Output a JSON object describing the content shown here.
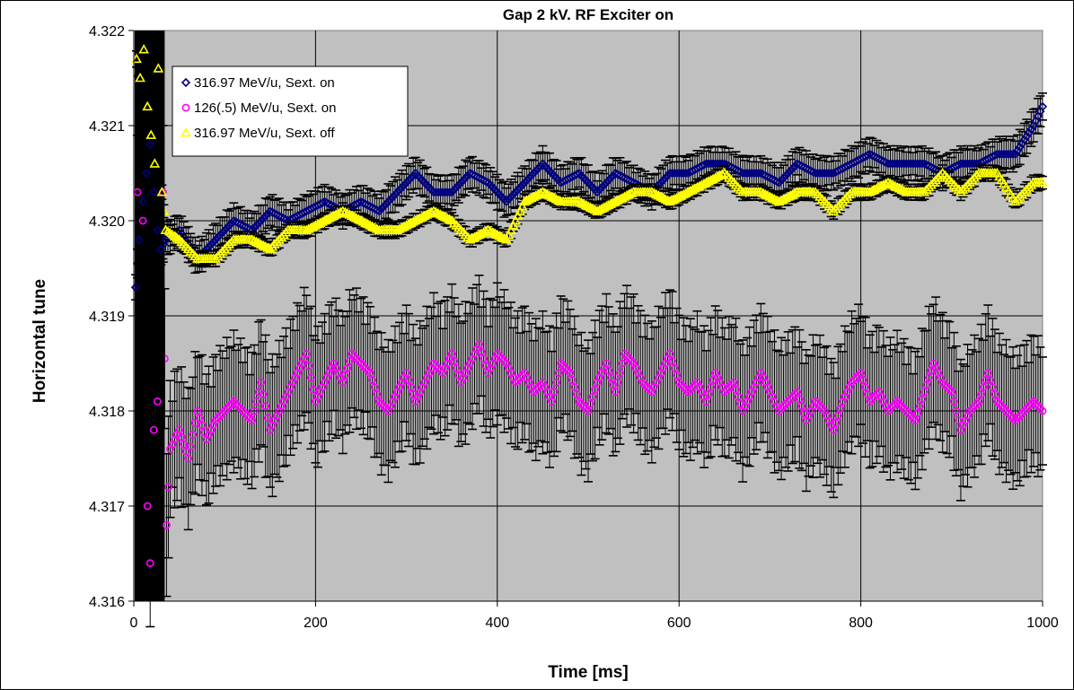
{
  "chart_data": {
    "type": "scatter",
    "title": "Gap 2 kV.  RF Exciter on",
    "xlabel": "Time [ms]",
    "ylabel": "Horizontal tune",
    "xlim": [
      0,
      1000
    ],
    "ylim": [
      4.316,
      4.322
    ],
    "xticks": [
      "0",
      "200",
      "400",
      "600",
      "800",
      "1000"
    ],
    "yticks": [
      "4.316",
      "4.317",
      "4.318",
      "4.319",
      "4.320",
      "4.321",
      "4.322"
    ],
    "grid": true,
    "legend_position": "top-left",
    "plot_background": "#c0c0c0",
    "series": [
      {
        "name": "316.97 MeV/u, Sext. on",
        "marker": "diamond",
        "color": "#000080",
        "error_bar": 0.00015,
        "points": [
          [
            2,
            4.3193
          ],
          [
            6,
            4.3198
          ],
          [
            10,
            4.3202
          ],
          [
            14,
            4.3205
          ],
          [
            18,
            4.3208
          ],
          [
            22,
            4.3203
          ],
          [
            26,
            4.3199
          ],
          [
            30,
            4.3197
          ],
          [
            35,
            4.3198
          ],
          [
            50,
            4.3199
          ],
          [
            70,
            4.3196
          ],
          [
            90,
            4.3198
          ],
          [
            110,
            4.32
          ],
          [
            130,
            4.3199
          ],
          [
            150,
            4.3201
          ],
          [
            170,
            4.32
          ],
          [
            190,
            4.3201
          ],
          [
            210,
            4.3202
          ],
          [
            230,
            4.3201
          ],
          [
            250,
            4.3202
          ],
          [
            270,
            4.3201
          ],
          [
            290,
            4.3203
          ],
          [
            310,
            4.3205
          ],
          [
            330,
            4.3203
          ],
          [
            350,
            4.3203
          ],
          [
            370,
            4.3205
          ],
          [
            390,
            4.3204
          ],
          [
            410,
            4.3202
          ],
          [
            430,
            4.3204
          ],
          [
            450,
            4.3206
          ],
          [
            470,
            4.3204
          ],
          [
            490,
            4.3205
          ],
          [
            510,
            4.3203
          ],
          [
            530,
            4.3205
          ],
          [
            550,
            4.3204
          ],
          [
            570,
            4.3203
          ],
          [
            590,
            4.3205
          ],
          [
            610,
            4.3205
          ],
          [
            630,
            4.3206
          ],
          [
            650,
            4.3206
          ],
          [
            670,
            4.3205
          ],
          [
            690,
            4.3205
          ],
          [
            710,
            4.3204
          ],
          [
            730,
            4.3206
          ],
          [
            750,
            4.3205
          ],
          [
            770,
            4.3205
          ],
          [
            790,
            4.3206
          ],
          [
            810,
            4.3207
          ],
          [
            830,
            4.3206
          ],
          [
            850,
            4.3206
          ],
          [
            870,
            4.3206
          ],
          [
            890,
            4.3205
          ],
          [
            910,
            4.3206
          ],
          [
            930,
            4.3206
          ],
          [
            950,
            4.3207
          ],
          [
            970,
            4.3207
          ],
          [
            990,
            4.321
          ],
          [
            1000,
            4.3212
          ]
        ]
      },
      {
        "name": "126(.5) MeV/u, Sext. on",
        "marker": "circle",
        "color": "#ff00ff",
        "error_bar": 0.0006,
        "points": [
          [
            4,
            4.3203
          ],
          [
            10,
            4.32
          ],
          [
            15,
            4.317
          ],
          [
            18,
            4.3164
          ],
          [
            22,
            4.3178
          ],
          [
            26,
            4.3181
          ],
          [
            32,
            4.3203
          ],
          [
            36,
            4.3168
          ],
          [
            40,
            4.3176
          ],
          [
            50,
            4.3178
          ],
          [
            60,
            4.3175
          ],
          [
            70,
            4.318
          ],
          [
            80,
            4.3177
          ],
          [
            90,
            4.3179
          ],
          [
            100,
            4.318
          ],
          [
            110,
            4.3181
          ],
          [
            120,
            4.318
          ],
          [
            130,
            4.3179
          ],
          [
            140,
            4.3183
          ],
          [
            150,
            4.3178
          ],
          [
            160,
            4.318
          ],
          [
            170,
            4.3182
          ],
          [
            180,
            4.3184
          ],
          [
            190,
            4.3186
          ],
          [
            200,
            4.3181
          ],
          [
            210,
            4.3183
          ],
          [
            220,
            4.3185
          ],
          [
            230,
            4.3183
          ],
          [
            240,
            4.3186
          ],
          [
            250,
            4.3185
          ],
          [
            260,
            4.3184
          ],
          [
            270,
            4.3181
          ],
          [
            280,
            4.318
          ],
          [
            290,
            4.3182
          ],
          [
            300,
            4.3184
          ],
          [
            310,
            4.3181
          ],
          [
            320,
            4.3183
          ],
          [
            330,
            4.3185
          ],
          [
            340,
            4.3184
          ],
          [
            350,
            4.3186
          ],
          [
            360,
            4.3183
          ],
          [
            370,
            4.3185
          ],
          [
            380,
            4.3187
          ],
          [
            390,
            4.3184
          ],
          [
            400,
            4.3186
          ],
          [
            410,
            4.3185
          ],
          [
            420,
            4.3183
          ],
          [
            430,
            4.3184
          ],
          [
            440,
            4.3182
          ],
          [
            450,
            4.3183
          ],
          [
            460,
            4.3181
          ],
          [
            470,
            4.3185
          ],
          [
            480,
            4.3184
          ],
          [
            490,
            4.3181
          ],
          [
            500,
            4.318
          ],
          [
            510,
            4.3183
          ],
          [
            520,
            4.3185
          ],
          [
            530,
            4.3182
          ],
          [
            540,
            4.3186
          ],
          [
            550,
            4.3185
          ],
          [
            560,
            4.3183
          ],
          [
            570,
            4.3182
          ],
          [
            580,
            4.3184
          ],
          [
            590,
            4.3186
          ],
          [
            600,
            4.3183
          ],
          [
            610,
            4.3182
          ],
          [
            620,
            4.3183
          ],
          [
            630,
            4.3181
          ],
          [
            640,
            4.3184
          ],
          [
            650,
            4.3182
          ],
          [
            660,
            4.3183
          ],
          [
            670,
            4.318
          ],
          [
            680,
            4.3182
          ],
          [
            690,
            4.3184
          ],
          [
            700,
            4.3182
          ],
          [
            710,
            4.318
          ],
          [
            720,
            4.3181
          ],
          [
            730,
            4.3182
          ],
          [
            740,
            4.3179
          ],
          [
            750,
            4.3181
          ],
          [
            760,
            4.318
          ],
          [
            770,
            4.3178
          ],
          [
            780,
            4.3181
          ],
          [
            790,
            4.3183
          ],
          [
            800,
            4.3184
          ],
          [
            810,
            4.3181
          ],
          [
            820,
            4.3182
          ],
          [
            830,
            4.318
          ],
          [
            840,
            4.3181
          ],
          [
            850,
            4.318
          ],
          [
            860,
            4.3179
          ],
          [
            870,
            4.3182
          ],
          [
            880,
            4.3185
          ],
          [
            890,
            4.3183
          ],
          [
            900,
            4.3182
          ],
          [
            910,
            4.3178
          ],
          [
            920,
            4.318
          ],
          [
            930,
            4.3181
          ],
          [
            940,
            4.3184
          ],
          [
            950,
            4.3181
          ],
          [
            960,
            4.318
          ],
          [
            970,
            4.3179
          ],
          [
            980,
            4.318
          ],
          [
            990,
            4.3181
          ],
          [
            1000,
            4.318
          ]
        ]
      },
      {
        "name": "316.97 MeV/u, Sext. off",
        "marker": "triangle",
        "color": "#ffff00",
        "error_bar": 7e-05,
        "points": [
          [
            3,
            4.3217
          ],
          [
            7,
            4.3215
          ],
          [
            11,
            4.3218
          ],
          [
            15,
            4.3212
          ],
          [
            19,
            4.3209
          ],
          [
            23,
            4.3206
          ],
          [
            27,
            4.3216
          ],
          [
            31,
            4.3203
          ],
          [
            35,
            4.3199
          ],
          [
            50,
            4.3198
          ],
          [
            70,
            4.3196
          ],
          [
            90,
            4.3196
          ],
          [
            110,
            4.3198
          ],
          [
            130,
            4.3198
          ],
          [
            150,
            4.3197
          ],
          [
            170,
            4.3199
          ],
          [
            190,
            4.3199
          ],
          [
            210,
            4.32
          ],
          [
            230,
            4.3201
          ],
          [
            250,
            4.32
          ],
          [
            270,
            4.3199
          ],
          [
            290,
            4.3199
          ],
          [
            310,
            4.32
          ],
          [
            330,
            4.3201
          ],
          [
            350,
            4.32
          ],
          [
            370,
            4.3198
          ],
          [
            390,
            4.3199
          ],
          [
            410,
            4.3198
          ],
          [
            430,
            4.3202
          ],
          [
            450,
            4.3203
          ],
          [
            470,
            4.3202
          ],
          [
            490,
            4.3202
          ],
          [
            510,
            4.3201
          ],
          [
            530,
            4.3202
          ],
          [
            550,
            4.3203
          ],
          [
            570,
            4.3203
          ],
          [
            590,
            4.3202
          ],
          [
            610,
            4.3203
          ],
          [
            630,
            4.3204
          ],
          [
            650,
            4.3205
          ],
          [
            670,
            4.3203
          ],
          [
            690,
            4.3203
          ],
          [
            710,
            4.3202
          ],
          [
            730,
            4.3203
          ],
          [
            750,
            4.3203
          ],
          [
            770,
            4.3201
          ],
          [
            790,
            4.3203
          ],
          [
            810,
            4.3203
          ],
          [
            830,
            4.3204
          ],
          [
            850,
            4.3203
          ],
          [
            870,
            4.3203
          ],
          [
            890,
            4.3205
          ],
          [
            910,
            4.3203
          ],
          [
            930,
            4.3205
          ],
          [
            950,
            4.3205
          ],
          [
            970,
            4.3202
          ],
          [
            990,
            4.3204
          ],
          [
            1000,
            4.3204
          ]
        ]
      }
    ]
  }
}
